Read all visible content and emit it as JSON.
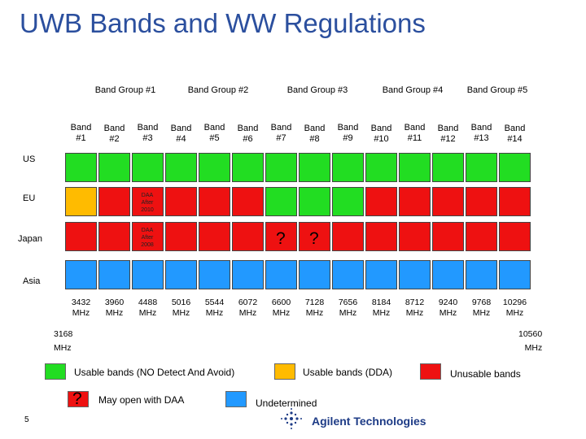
{
  "title": "UWB Bands and WW Regulations",
  "band_groups": [
    {
      "label": "Band Group #1"
    },
    {
      "label": "Band Group #2"
    },
    {
      "label": "Band Group #3"
    },
    {
      "label": "Band Group #4"
    },
    {
      "label": "Band Group #5"
    }
  ],
  "bands": [
    {
      "line1": "Band",
      "line2": "#1"
    },
    {
      "line1": "Band",
      "line2": "#2"
    },
    {
      "line1": "Band",
      "line2": "#3"
    },
    {
      "line1": "Band",
      "line2": "#4"
    },
    {
      "line1": "Band",
      "line2": "#5"
    },
    {
      "line1": "Band",
      "line2": "#6"
    },
    {
      "line1": "Band",
      "line2": "#7"
    },
    {
      "line1": "Band",
      "line2": "#8"
    },
    {
      "line1": "Band",
      "line2": "#9"
    },
    {
      "line1": "Band",
      "line2": "#10"
    },
    {
      "line1": "Band",
      "line2": "#11"
    },
    {
      "line1": "Band",
      "line2": "#12"
    },
    {
      "line1": "Band",
      "line2": "#13"
    },
    {
      "line1": "Band",
      "line2": "#14"
    }
  ],
  "regions": [
    "US",
    "EU",
    "Japan",
    "Asia"
  ],
  "row_colors": {
    "US": [
      "green",
      "green",
      "green",
      "green",
      "green",
      "green",
      "green",
      "green",
      "green",
      "green",
      "green",
      "green",
      "green",
      "green"
    ],
    "EU": [
      "yellow",
      "red",
      "red",
      "red",
      "red",
      "red",
      "green",
      "green",
      "green",
      "red",
      "red",
      "red",
      "red",
      "red"
    ],
    "Japan": [
      "red",
      "red",
      "red",
      "red",
      "red",
      "red",
      "red",
      "red",
      "red",
      "red",
      "red",
      "red",
      "red",
      "red"
    ],
    "Asia": [
      "blue",
      "blue",
      "blue",
      "blue",
      "blue",
      "blue",
      "blue",
      "blue",
      "blue",
      "blue",
      "blue",
      "blue",
      "blue",
      "blue"
    ]
  },
  "colors": {
    "green": "#22dd22",
    "yellow": "#ffbb00",
    "red": "#ee1111",
    "blue": "#2299ff"
  },
  "daa_notes": [
    {
      "line1": "DAA",
      "line2": "After",
      "line3": "2010"
    },
    {
      "line1": "DAA",
      "line2": "After",
      "line3": "2008"
    }
  ],
  "question_marks": [
    "?",
    "?"
  ],
  "frequencies": [
    {
      "value": "3432",
      "unit": "MHz"
    },
    {
      "value": "3960",
      "unit": "MHz"
    },
    {
      "value": "4488",
      "unit": "MHz"
    },
    {
      "value": "5016",
      "unit": "MHz"
    },
    {
      "value": "5544",
      "unit": "MHz"
    },
    {
      "value": "6072",
      "unit": "MHz"
    },
    {
      "value": "6600",
      "unit": "MHz"
    },
    {
      "value": "7128",
      "unit": "MHz"
    },
    {
      "value": "7656",
      "unit": "MHz"
    },
    {
      "value": "8184",
      "unit": "MHz"
    },
    {
      "value": "8712",
      "unit": "MHz"
    },
    {
      "value": "9240",
      "unit": "MHz"
    },
    {
      "value": "9768",
      "unit": "MHz"
    },
    {
      "value": "10296",
      "unit": "MHz"
    }
  ],
  "edge_start": {
    "value": "3168",
    "unit": "MHz"
  },
  "edge_end": {
    "value": "10560",
    "unit": "MHz"
  },
  "legend": {
    "usable_no_detect": "Usable bands (NO Detect And Avoid)",
    "usable_daa": "Usable bands (DDA)",
    "unusable": "Unusable bands",
    "may_open": "May open with DAA",
    "question": "?",
    "undetermined": "Undetermined"
  },
  "page_number": "5",
  "logo_text": "Agilent Technologies"
}
